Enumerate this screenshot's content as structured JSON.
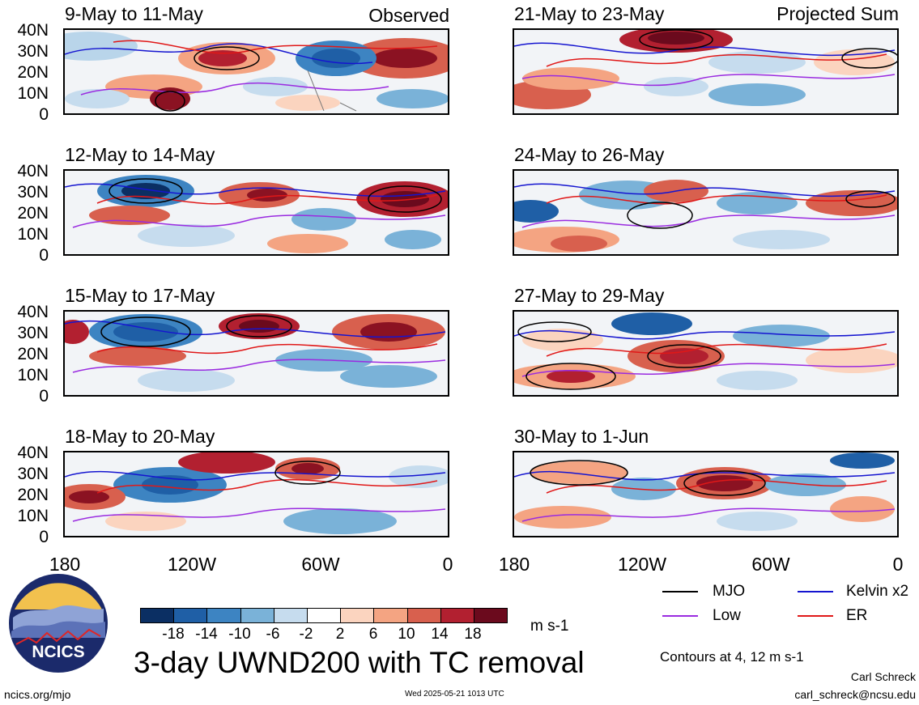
{
  "panels": {
    "left": [
      {
        "title": "9-May to 11-May",
        "tag": "Observed"
      },
      {
        "title": "12-May to 14-May"
      },
      {
        "title": "15-May to 17-May"
      },
      {
        "title": "18-May to 20-May"
      }
    ],
    "right": [
      {
        "title": "21-May to 23-May",
        "tag": "Projected Sum"
      },
      {
        "title": "24-May to 26-May"
      },
      {
        "title": "27-May to 29-May"
      },
      {
        "title": "30-May to 1-Jun"
      }
    ]
  },
  "y_ticks": [
    "40N",
    "30N",
    "20N",
    "10N",
    "0"
  ],
  "x_ticks": [
    "180",
    "120W",
    "60W",
    "0"
  ],
  "colorbar": {
    "labels": [
      "-18",
      "-14",
      "-10",
      "-6",
      "-2",
      "2",
      "6",
      "10",
      "14",
      "18"
    ],
    "colors": [
      "#0b2f63",
      "#1f5fa6",
      "#3d84c2",
      "#7ab2d8",
      "#c6dcee",
      "#ffffff",
      "#fbd4bf",
      "#f4a482",
      "#d8604e",
      "#b22030",
      "#6b0a1d"
    ],
    "units": "m s-1"
  },
  "legend": [
    {
      "label": "MJO",
      "color": "#000000"
    },
    {
      "label": "Kelvin x2",
      "color": "#1515d0"
    },
    {
      "label": "Low",
      "color": "#9a2be0"
    },
    {
      "label": "ER",
      "color": "#e01818"
    }
  ],
  "contours_note": "Contours at 4, 12 m s-1",
  "main_title": "3-day UWND200 with TC removal",
  "logo_text": "NCICS",
  "footer": {
    "url": "ncics.org/mjo",
    "timestamp": "Wed 2025-05-21 1013 UTC",
    "author": "Carl Schreck",
    "email": "carl_schreck@ncsu.edu"
  }
}
